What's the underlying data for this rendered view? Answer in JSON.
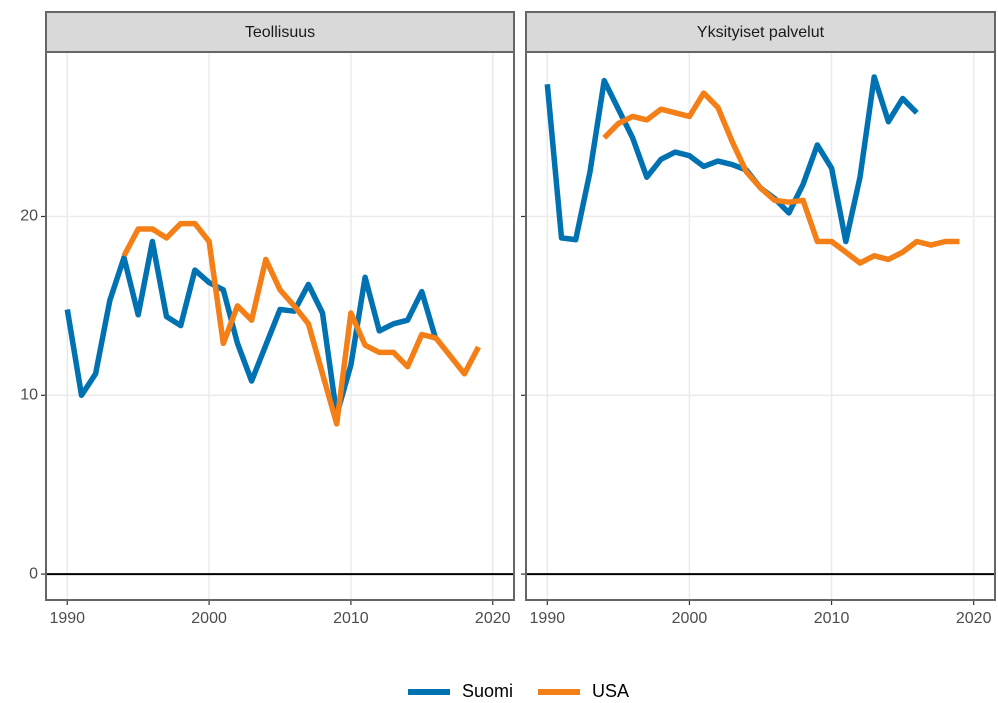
{
  "chart_data": [
    {
      "type": "line",
      "title": "Teollisuus",
      "x": [
        1990,
        1991,
        1992,
        1993,
        1994,
        1995,
        1996,
        1997,
        1998,
        1999,
        2000,
        2001,
        2002,
        2003,
        2004,
        2005,
        2006,
        2007,
        2008,
        2009,
        2010,
        2011,
        2012,
        2013,
        2014,
        2015,
        2016,
        2017,
        2018,
        2019
      ],
      "series": [
        {
          "name": "Suomi",
          "color": "#0072b2",
          "values": [
            14.8,
            10.0,
            11.2,
            15.3,
            17.7,
            14.5,
            18.6,
            14.4,
            13.9,
            17.0,
            16.3,
            15.9,
            12.9,
            10.8,
            12.8,
            14.8,
            14.7,
            16.2,
            14.6,
            8.9,
            11.7,
            16.6,
            13.6,
            14.0,
            14.2,
            15.8,
            13.1,
            null,
            null,
            null
          ]
        },
        {
          "name": "USA",
          "color": "#f57f17",
          "values": [
            null,
            null,
            null,
            null,
            17.8,
            19.3,
            19.3,
            18.8,
            19.6,
            19.6,
            18.6,
            12.9,
            15.0,
            14.2,
            17.6,
            15.9,
            15.0,
            14.0,
            11.2,
            8.4,
            14.6,
            12.8,
            12.4,
            12.4,
            11.6,
            13.4,
            13.2,
            12.2,
            11.2,
            12.7
          ]
        }
      ],
      "xlim": [
        1988.5,
        2021.5
      ],
      "xticks": [
        1990,
        2000,
        2010,
        2020
      ],
      "ylim": [
        -1.45,
        29.2
      ],
      "yticks": [
        0,
        10,
        20
      ],
      "hline": 0,
      "grid": true
    },
    {
      "type": "line",
      "title": "Yksityiset palvelut",
      "x": [
        1990,
        1991,
        1992,
        1993,
        1994,
        1995,
        1996,
        1997,
        1998,
        1999,
        2000,
        2001,
        2002,
        2003,
        2004,
        2005,
        2006,
        2007,
        2008,
        2009,
        2010,
        2011,
        2012,
        2013,
        2014,
        2015,
        2016,
        2017,
        2018,
        2019
      ],
      "series": [
        {
          "name": "Suomi",
          "color": "#0072b2",
          "values": [
            27.4,
            18.8,
            18.7,
            22.5,
            27.6,
            26.0,
            24.4,
            22.2,
            23.2,
            23.6,
            23.4,
            22.8,
            23.1,
            22.9,
            22.6,
            21.6,
            21.0,
            20.2,
            21.8,
            24.0,
            22.7,
            18.6,
            22.2,
            27.8,
            25.3,
            26.6,
            25.8,
            null,
            null,
            null
          ]
        },
        {
          "name": "USA",
          "color": "#f57f17",
          "values": [
            null,
            null,
            null,
            null,
            24.4,
            25.2,
            25.6,
            25.4,
            26.0,
            25.8,
            25.6,
            26.9,
            26.1,
            24.2,
            22.5,
            21.6,
            20.9,
            20.8,
            20.9,
            18.6,
            18.6,
            18.0,
            17.4,
            17.8,
            17.6,
            18.0,
            18.6,
            18.4,
            18.6,
            18.6
          ]
        }
      ],
      "xlim": [
        1988.5,
        2021.5
      ],
      "xticks": [
        1990,
        2000,
        2010,
        2020
      ],
      "ylim": [
        -1.45,
        29.2
      ],
      "yticks": [
        0,
        10,
        20
      ],
      "hline": 0,
      "grid": true
    }
  ]
}
